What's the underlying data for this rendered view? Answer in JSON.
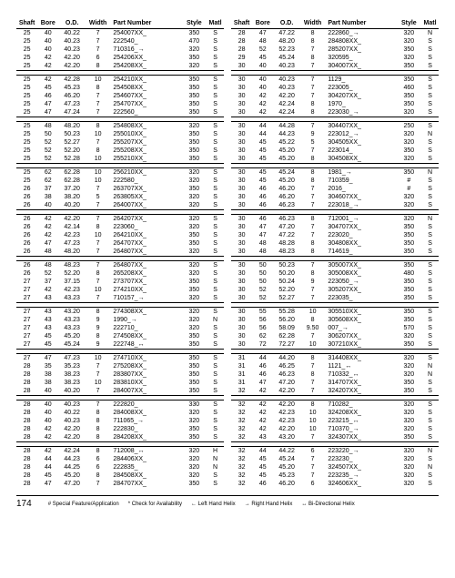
{
  "headers": {
    "shaft": "Shaft",
    "bore": "Bore",
    "od": "O.D.",
    "width": "Width",
    "part": "Part Number",
    "style": "Style",
    "matl": "Matl"
  },
  "left_groups": [
    [
      {
        "shaft": "25",
        "bore": "40",
        "od": "40.22",
        "width": "7",
        "part": "254007XX_",
        "style": "350",
        "matl": "S"
      },
      {
        "shaft": "25",
        "bore": "40",
        "od": "40.23",
        "width": "7",
        "part": "222540_",
        "style": "470",
        "matl": "S"
      },
      {
        "shaft": "25",
        "bore": "40",
        "od": "40.23",
        "width": "7",
        "part": "710316_→",
        "style": "320",
        "matl": "S"
      },
      {
        "shaft": "25",
        "bore": "42",
        "od": "42.20",
        "width": "6",
        "part": "254206XX_",
        "style": "350",
        "matl": "S"
      },
      {
        "shaft": "25",
        "bore": "42",
        "od": "42.20",
        "width": "8",
        "part": "254208XX_",
        "style": "320",
        "matl": "S"
      }
    ],
    [
      {
        "shaft": "25",
        "bore": "42",
        "od": "42.28",
        "width": "10",
        "part": "254210XX_",
        "style": "350",
        "matl": "S"
      },
      {
        "shaft": "25",
        "bore": "45",
        "od": "45.23",
        "width": "8",
        "part": "254508XX_",
        "style": "350",
        "matl": "S"
      },
      {
        "shaft": "25",
        "bore": "46",
        "od": "46.20",
        "width": "7",
        "part": "254607XX_",
        "style": "350",
        "matl": "S"
      },
      {
        "shaft": "25",
        "bore": "47",
        "od": "47.23",
        "width": "7",
        "part": "254707XX_",
        "style": "350",
        "matl": "S"
      },
      {
        "shaft": "25",
        "bore": "47",
        "od": "47.24",
        "width": "7",
        "part": "222560_",
        "style": "350",
        "matl": "S"
      }
    ],
    [
      {
        "shaft": "25",
        "bore": "48",
        "od": "48.20",
        "width": "8",
        "part": "254808XX_",
        "style": "320",
        "matl": "S"
      },
      {
        "shaft": "25",
        "bore": "50",
        "od": "50.23",
        "width": "10",
        "part": "255010XX_",
        "style": "350",
        "matl": "S"
      },
      {
        "shaft": "25",
        "bore": "52",
        "od": "52.27",
        "width": "7",
        "part": "255207XX_",
        "style": "350",
        "matl": "S"
      },
      {
        "shaft": "25",
        "bore": "52",
        "od": "52.20",
        "width": "8",
        "part": "255208XX_",
        "style": "350",
        "matl": "S"
      },
      {
        "shaft": "25",
        "bore": "52",
        "od": "52.28",
        "width": "10",
        "part": "255210XX_",
        "style": "350",
        "matl": "S"
      }
    ],
    [
      {
        "shaft": "25",
        "bore": "62",
        "od": "62.28",
        "width": "10",
        "part": "256210XX_",
        "style": "320",
        "matl": "S"
      },
      {
        "shaft": "25",
        "bore": "62",
        "od": "62.28",
        "width": "10",
        "part": "222580_",
        "style": "320",
        "matl": "S"
      },
      {
        "shaft": "26",
        "bore": "37",
        "od": "37.20",
        "width": "7",
        "part": "263707XX_",
        "style": "350",
        "matl": "S"
      },
      {
        "shaft": "26",
        "bore": "38",
        "od": "38.20",
        "width": "5",
        "part": "263805XX_",
        "style": "320",
        "matl": "S"
      },
      {
        "shaft": "26",
        "bore": "40",
        "od": "40.20",
        "width": "7",
        "part": "264007XX_",
        "style": "320",
        "matl": "S"
      }
    ],
    [
      {
        "shaft": "26",
        "bore": "42",
        "od": "42.20",
        "width": "7",
        "part": "264207XX_",
        "style": "320",
        "matl": "S"
      },
      {
        "shaft": "26",
        "bore": "42",
        "od": "42.14",
        "width": "8",
        "part": "223060_",
        "style": "320",
        "matl": "S"
      },
      {
        "shaft": "26",
        "bore": "42",
        "od": "42.23",
        "width": "10",
        "part": "264210XX_",
        "style": "350",
        "matl": "S"
      },
      {
        "shaft": "26",
        "bore": "47",
        "od": "47.23",
        "width": "7",
        "part": "264707XX_",
        "style": "350",
        "matl": "S"
      },
      {
        "shaft": "26",
        "bore": "48",
        "od": "48.20",
        "width": "7",
        "part": "264807XX_",
        "style": "320",
        "matl": "S"
      }
    ],
    [
      {
        "shaft": "26",
        "bore": "48",
        "od": "48.23",
        "width": "7",
        "part": "264807XX_",
        "style": "320",
        "matl": "S"
      },
      {
        "shaft": "26",
        "bore": "52",
        "od": "52.20",
        "width": "8",
        "part": "265208XX_",
        "style": "320",
        "matl": "S"
      },
      {
        "shaft": "27",
        "bore": "37",
        "od": "37.15",
        "width": "7",
        "part": "273707XX_",
        "style": "350",
        "matl": "S"
      },
      {
        "shaft": "27",
        "bore": "42",
        "od": "42.23",
        "width": "10",
        "part": "274210XX_",
        "style": "350",
        "matl": "S"
      },
      {
        "shaft": "27",
        "bore": "43",
        "od": "43.23",
        "width": "7",
        "part": "710157_→",
        "style": "320",
        "matl": "S"
      }
    ],
    [
      {
        "shaft": "27",
        "bore": "43",
        "od": "43.20",
        "width": "8",
        "part": "274308XX_",
        "style": "320",
        "matl": "S"
      },
      {
        "shaft": "27",
        "bore": "43",
        "od": "43.23",
        "width": "9",
        "part": "1990_→",
        "style": "320",
        "matl": "N"
      },
      {
        "shaft": "27",
        "bore": "43",
        "od": "43.23",
        "width": "9",
        "part": "222710_",
        "style": "320",
        "matl": "S"
      },
      {
        "shaft": "27",
        "bore": "45",
        "od": "45.20",
        "width": "8",
        "part": "274508XX_",
        "style": "350",
        "matl": "S"
      },
      {
        "shaft": "27",
        "bore": "45",
        "od": "45.24",
        "width": "9",
        "part": "222748_↔",
        "style": "350",
        "matl": "S"
      }
    ],
    [
      {
        "shaft": "27",
        "bore": "47",
        "od": "47.23",
        "width": "10",
        "part": "274710XX_",
        "style": "350",
        "matl": "S"
      },
      {
        "shaft": "28",
        "bore": "35",
        "od": "35.23",
        "width": "7",
        "part": "275208XX_",
        "style": "350",
        "matl": "S"
      },
      {
        "shaft": "28",
        "bore": "38",
        "od": "38.23",
        "width": "7",
        "part": "283807XX_",
        "style": "350",
        "matl": "S"
      },
      {
        "shaft": "28",
        "bore": "38",
        "od": "38.23",
        "width": "10",
        "part": "283810XX_",
        "style": "350",
        "matl": "S"
      },
      {
        "shaft": "28",
        "bore": "40",
        "od": "40.20",
        "width": "7",
        "part": "284007XX_",
        "style": "350",
        "matl": "S"
      }
    ],
    [
      {
        "shaft": "28",
        "bore": "40",
        "od": "40.23",
        "width": "7",
        "part": "222820_",
        "style": "330",
        "matl": "S"
      },
      {
        "shaft": "28",
        "bore": "40",
        "od": "40.22",
        "width": "8",
        "part": "284008XX_",
        "style": "320",
        "matl": "S"
      },
      {
        "shaft": "28",
        "bore": "40",
        "od": "40.23",
        "width": "8",
        "part": "711065_→",
        "style": "320",
        "matl": "S"
      },
      {
        "shaft": "28",
        "bore": "42",
        "od": "42.20",
        "width": "8",
        "part": "222830_",
        "style": "350",
        "matl": "S"
      },
      {
        "shaft": "28",
        "bore": "42",
        "od": "42.20",
        "width": "8",
        "part": "284208XX_",
        "style": "350",
        "matl": "S"
      }
    ],
    [
      {
        "shaft": "28",
        "bore": "42",
        "od": "42.24",
        "width": "8",
        "part": "712008_↔",
        "style": "320",
        "matl": "H"
      },
      {
        "shaft": "28",
        "bore": "44",
        "od": "44.23",
        "width": "6",
        "part": "284406XX_",
        "style": "320",
        "matl": "N"
      },
      {
        "shaft": "28",
        "bore": "44",
        "od": "44.25",
        "width": "6",
        "part": "222835_",
        "style": "320",
        "matl": "N"
      },
      {
        "shaft": "28",
        "bore": "45",
        "od": "45.20",
        "width": "8",
        "part": "284508XX_",
        "style": "320",
        "matl": "S"
      },
      {
        "shaft": "28",
        "bore": "47",
        "od": "47.20",
        "width": "7",
        "part": "284707XX_",
        "style": "350",
        "matl": "S"
      }
    ]
  ],
  "right_groups": [
    [
      {
        "shaft": "28",
        "bore": "47",
        "od": "47.22",
        "width": "8",
        "part": "222860_→",
        "style": "320",
        "matl": "N"
      },
      {
        "shaft": "28",
        "bore": "48",
        "od": "48.20",
        "width": "8",
        "part": "284808XX_",
        "style": "320",
        "matl": "S"
      },
      {
        "shaft": "28",
        "bore": "52",
        "od": "52.23",
        "width": "7",
        "part": "285207XX_",
        "style": "350",
        "matl": "S"
      },
      {
        "shaft": "29",
        "bore": "45",
        "od": "45.24",
        "width": "8",
        "part": "320595_",
        "style": "320",
        "matl": "S"
      },
      {
        "shaft": "30",
        "bore": "40",
        "od": "40.23",
        "width": "7",
        "part": "304007XX_",
        "style": "350",
        "matl": "S"
      }
    ],
    [
      {
        "shaft": "30",
        "bore": "40",
        "od": "40.23",
        "width": "7",
        "part": "1129_",
        "style": "350",
        "matl": "S"
      },
      {
        "shaft": "30",
        "bore": "40",
        "od": "40.23",
        "width": "7",
        "part": "223005_",
        "style": "460",
        "matl": "S"
      },
      {
        "shaft": "30",
        "bore": "42",
        "od": "42.20",
        "width": "7",
        "part": "304207XX_",
        "style": "350",
        "matl": "S"
      },
      {
        "shaft": "30",
        "bore": "42",
        "od": "42.24",
        "width": "8",
        "part": "1970_",
        "style": "350",
        "matl": "S"
      },
      {
        "shaft": "30",
        "bore": "42",
        "od": "42.24",
        "width": "8",
        "part": "223030_→",
        "style": "320",
        "matl": "S"
      }
    ],
    [
      {
        "shaft": "30",
        "bore": "44",
        "od": "44.28",
        "width": "7",
        "part": "304407XX_",
        "style": "250",
        "matl": "S"
      },
      {
        "shaft": "30",
        "bore": "44",
        "od": "44.23",
        "width": "9",
        "part": "223012_→",
        "style": "320",
        "matl": "N"
      },
      {
        "shaft": "30",
        "bore": "45",
        "od": "45.22",
        "width": "5",
        "part": "304505XX_",
        "style": "320",
        "matl": "S"
      },
      {
        "shaft": "30",
        "bore": "45",
        "od": "45.20",
        "width": "7",
        "part": "223014_",
        "style": "350",
        "matl": "S"
      },
      {
        "shaft": "30",
        "bore": "45",
        "od": "45.20",
        "width": "8",
        "part": "304508XX_",
        "style": "320",
        "matl": "S"
      }
    ],
    [
      {
        "shaft": "30",
        "bore": "45",
        "od": "45.24",
        "width": "8",
        "part": "1981_→",
        "style": "350",
        "matl": "N"
      },
      {
        "shaft": "30",
        "bore": "45",
        "od": "45.20",
        "width": "8",
        "part": "710359_",
        "style": "#",
        "matl": "S"
      },
      {
        "shaft": "30",
        "bore": "46",
        "od": "46.20",
        "width": "7",
        "part": "2016_",
        "style": "#",
        "matl": "S"
      },
      {
        "shaft": "30",
        "bore": "46",
        "od": "46.20",
        "width": "7",
        "part": "304607XX_",
        "style": "320",
        "matl": "S"
      },
      {
        "shaft": "30",
        "bore": "46",
        "od": "46.23",
        "width": "7",
        "part": "223018_→",
        "style": "320",
        "matl": "S"
      }
    ],
    [
      {
        "shaft": "30",
        "bore": "46",
        "od": "46.23",
        "width": "8",
        "part": "712001_→",
        "style": "320",
        "matl": "N"
      },
      {
        "shaft": "30",
        "bore": "47",
        "od": "47.20",
        "width": "7",
        "part": "304707XX_",
        "style": "350",
        "matl": "S"
      },
      {
        "shaft": "30",
        "bore": "47",
        "od": "47.22",
        "width": "7",
        "part": "223020_",
        "style": "350",
        "matl": "S"
      },
      {
        "shaft": "30",
        "bore": "48",
        "od": "48.28",
        "width": "8",
        "part": "304808XX_",
        "style": "350",
        "matl": "S"
      },
      {
        "shaft": "30",
        "bore": "48",
        "od": "48.23",
        "width": "8",
        "part": "714619_",
        "style": "350",
        "matl": "S"
      }
    ],
    [
      {
        "shaft": "30",
        "bore": "50",
        "od": "50.23",
        "width": "7",
        "part": "305007XX_",
        "style": "350",
        "matl": "S"
      },
      {
        "shaft": "30",
        "bore": "50",
        "od": "50.20",
        "width": "8",
        "part": "305008XX_",
        "style": "480",
        "matl": "S"
      },
      {
        "shaft": "30",
        "bore": "50",
        "od": "50.24",
        "width": "9",
        "part": "223050_→",
        "style": "350",
        "matl": "S"
      },
      {
        "shaft": "30",
        "bore": "52",
        "od": "52.20",
        "width": "7",
        "part": "305207XX_",
        "style": "350",
        "matl": "S"
      },
      {
        "shaft": "30",
        "bore": "52",
        "od": "52.27",
        "width": "7",
        "part": "223035_",
        "style": "350",
        "matl": "S"
      }
    ],
    [
      {
        "shaft": "30",
        "bore": "55",
        "od": "55.28",
        "width": "10",
        "part": "305510XX_",
        "style": "350",
        "matl": "S"
      },
      {
        "shaft": "30",
        "bore": "56",
        "od": "56.20",
        "width": "8",
        "part": "305608XX_",
        "style": "350",
        "matl": "S"
      },
      {
        "shaft": "30",
        "bore": "56",
        "od": "58.09",
        "width": "9.50",
        "part": "007_→",
        "style": "570",
        "matl": "S"
      },
      {
        "shaft": "30",
        "bore": "62",
        "od": "62.28",
        "width": "7",
        "part": "306207XX_",
        "style": "320",
        "matl": "S"
      },
      {
        "shaft": "30",
        "bore": "72",
        "od": "72.27",
        "width": "10",
        "part": "307210XX_",
        "style": "350",
        "matl": "S"
      }
    ],
    [
      {
        "shaft": "31",
        "bore": "44",
        "od": "44.20",
        "width": "8",
        "part": "314408XX_",
        "style": "320",
        "matl": "S"
      },
      {
        "shaft": "31",
        "bore": "46",
        "od": "46.25",
        "width": "7",
        "part": "1121_↔",
        "style": "320",
        "matl": "N"
      },
      {
        "shaft": "31",
        "bore": "46",
        "od": "46.23",
        "width": "8",
        "part": "710332_↔",
        "style": "320",
        "matl": "N"
      },
      {
        "shaft": "31",
        "bore": "47",
        "od": "47.20",
        "width": "7",
        "part": "314707XX_",
        "style": "350",
        "matl": "S"
      },
      {
        "shaft": "32",
        "bore": "42",
        "od": "42.20",
        "width": "7",
        "part": "324207XX_",
        "style": "350",
        "matl": "S"
      }
    ],
    [
      {
        "shaft": "32",
        "bore": "42",
        "od": "42.20",
        "width": "8",
        "part": "710282_",
        "style": "320",
        "matl": "S"
      },
      {
        "shaft": "32",
        "bore": "42",
        "od": "42.23",
        "width": "10",
        "part": "324208XX_",
        "style": "320",
        "matl": "S"
      },
      {
        "shaft": "32",
        "bore": "42",
        "od": "42.23",
        "width": "10",
        "part": "223215_↔",
        "style": "320",
        "matl": "S"
      },
      {
        "shaft": "32",
        "bore": "42",
        "od": "42.20",
        "width": "10",
        "part": "710370_→",
        "style": "320",
        "matl": "S"
      },
      {
        "shaft": "32",
        "bore": "43",
        "od": "43.20",
        "width": "7",
        "part": "324307XX_",
        "style": "350",
        "matl": "S"
      }
    ],
    [
      {
        "shaft": "32",
        "bore": "44",
        "od": "44.22",
        "width": "6",
        "part": "223220_→",
        "style": "320",
        "matl": "N"
      },
      {
        "shaft": "32",
        "bore": "45",
        "od": "45.24",
        "width": "7",
        "part": "223230_",
        "style": "320",
        "matl": "S"
      },
      {
        "shaft": "32",
        "bore": "45",
        "od": "45.20",
        "width": "7",
        "part": "324507XX_",
        "style": "320",
        "matl": "N"
      },
      {
        "shaft": "32",
        "bore": "45",
        "od": "45.23",
        "width": "7",
        "part": "223235_→",
        "style": "320",
        "matl": "S"
      },
      {
        "shaft": "32",
        "bore": "46",
        "od": "46.20",
        "width": "6",
        "part": "324606XX_",
        "style": "320",
        "matl": "S"
      }
    ]
  ],
  "footer": {
    "page": "174",
    "note1": "# Special Feature/Application",
    "note2": "* Check for Availability",
    "note3": "← Left Hand Helix",
    "note4": "→ Right Hand Helix",
    "note5": "↔ Bi-Directional Helix"
  }
}
